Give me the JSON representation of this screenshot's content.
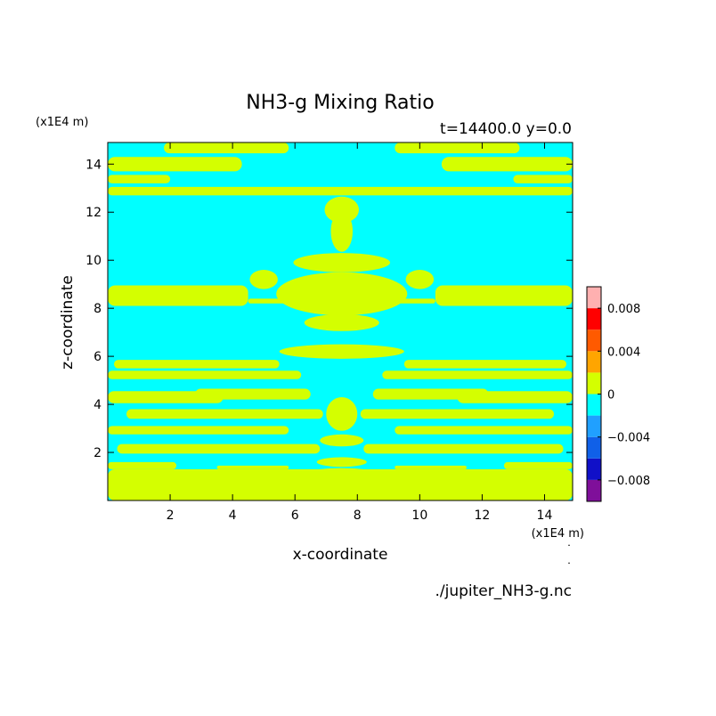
{
  "chart_data": {
    "type": "heatmap",
    "title": "NH3-g Mixing Ratio",
    "subtitle": "t=14400.0 y=0.0",
    "xlabel": "x-coordinate",
    "ylabel": "z-coordinate",
    "x_unit": "(x1E4 m)",
    "y_unit": "(x1E4 m)",
    "x_unit_marks": [
      "˙",
      "˙"
    ],
    "source_file": "./jupiter_NH3-g.nc",
    "xlim": [
      0,
      14.9
    ],
    "ylim": [
      0,
      14.9
    ],
    "x_ticks": [
      2,
      4,
      6,
      8,
      10,
      12,
      14
    ],
    "y_ticks": [
      2,
      4,
      6,
      8,
      10,
      12,
      14
    ],
    "x_tick_labels": [
      "2",
      "4",
      "6",
      "8",
      "10",
      "12",
      "14"
    ],
    "y_tick_labels": [
      "2",
      "4",
      "6",
      "8",
      "10",
      "12",
      "14"
    ],
    "colorbar": {
      "levels": [
        -0.01,
        -0.008,
        -0.006,
        -0.004,
        -0.002,
        0,
        0.002,
        0.004,
        0.006,
        0.008,
        0.01
      ],
      "colors": [
        "#7f0f9a",
        "#1010c8",
        "#1060e8",
        "#20a0ff",
        "#00ffff",
        "#d4ff00",
        "#ffa500",
        "#ff5a00",
        "#ff0000",
        "#ffb0b0"
      ],
      "tick_values": [
        -0.008,
        -0.004,
        0,
        0.004,
        0.008
      ],
      "tick_labels": [
        "−0.008",
        "−0.004",
        "0",
        "0.004",
        "0.008"
      ]
    },
    "fill_levels": {
      "positive_color": "#d4ff00",
      "negative_color": "#00ffff",
      "positive_range": "0 to 0.002",
      "negative_range": "-0.002 to 0"
    },
    "positive_regions": {
      "bands": [
        [
          0.0,
          14.9,
          0.0,
          1.3
        ],
        [
          0.0,
          2.2,
          1.3,
          1.6
        ],
        [
          3.5,
          5.8,
          1.3,
          1.45
        ],
        [
          9.2,
          11.5,
          1.3,
          1.45
        ],
        [
          12.7,
          14.9,
          1.3,
          1.6
        ],
        [
          0.3,
          6.8,
          1.95,
          2.35
        ],
        [
          8.2,
          14.6,
          1.95,
          2.35
        ],
        [
          0.0,
          5.8,
          2.75,
          3.1
        ],
        [
          9.2,
          14.9,
          2.75,
          3.1
        ],
        [
          0.6,
          6.9,
          3.4,
          3.8
        ],
        [
          8.1,
          14.3,
          3.4,
          3.8
        ],
        [
          0.0,
          3.7,
          4.05,
          4.55
        ],
        [
          11.2,
          14.9,
          4.05,
          4.55
        ],
        [
          2.8,
          6.5,
          4.2,
          4.65
        ],
        [
          8.5,
          12.2,
          4.2,
          4.65
        ],
        [
          0.0,
          6.2,
          5.05,
          5.4
        ],
        [
          8.8,
          14.9,
          5.05,
          5.4
        ],
        [
          0.2,
          5.5,
          5.5,
          5.85
        ],
        [
          9.5,
          14.7,
          5.5,
          5.85
        ],
        [
          0.0,
          4.5,
          8.1,
          8.95
        ],
        [
          10.5,
          14.9,
          8.1,
          8.95
        ],
        [
          4.5,
          6.8,
          8.2,
          8.4
        ],
        [
          8.2,
          10.5,
          8.2,
          8.4
        ],
        [
          0.0,
          14.9,
          12.7,
          13.05
        ],
        [
          0.0,
          2.0,
          13.2,
          13.55
        ],
        [
          13.0,
          14.9,
          13.2,
          13.55
        ],
        [
          0.0,
          4.3,
          13.7,
          14.3
        ],
        [
          10.7,
          14.9,
          13.7,
          14.3
        ],
        [
          1.8,
          5.8,
          14.45,
          14.9
        ],
        [
          9.2,
          13.2,
          14.45,
          14.9
        ]
      ],
      "blobs": [
        [
          7.5,
          12.1,
          0.55,
          0.55
        ],
        [
          7.5,
          11.2,
          0.35,
          0.85
        ],
        [
          7.5,
          9.9,
          1.55,
          0.4
        ],
        [
          7.5,
          8.6,
          2.1,
          0.9
        ],
        [
          7.5,
          7.4,
          1.2,
          0.35
        ],
        [
          5.0,
          9.2,
          0.45,
          0.4
        ],
        [
          10.0,
          9.2,
          0.45,
          0.4
        ],
        [
          7.5,
          6.2,
          2.0,
          0.3
        ],
        [
          7.5,
          3.6,
          0.5,
          0.7
        ],
        [
          7.5,
          2.5,
          0.7,
          0.25
        ],
        [
          7.5,
          1.6,
          0.8,
          0.2
        ],
        [
          7.5,
          1.2,
          0.9,
          0.15
        ]
      ]
    }
  }
}
